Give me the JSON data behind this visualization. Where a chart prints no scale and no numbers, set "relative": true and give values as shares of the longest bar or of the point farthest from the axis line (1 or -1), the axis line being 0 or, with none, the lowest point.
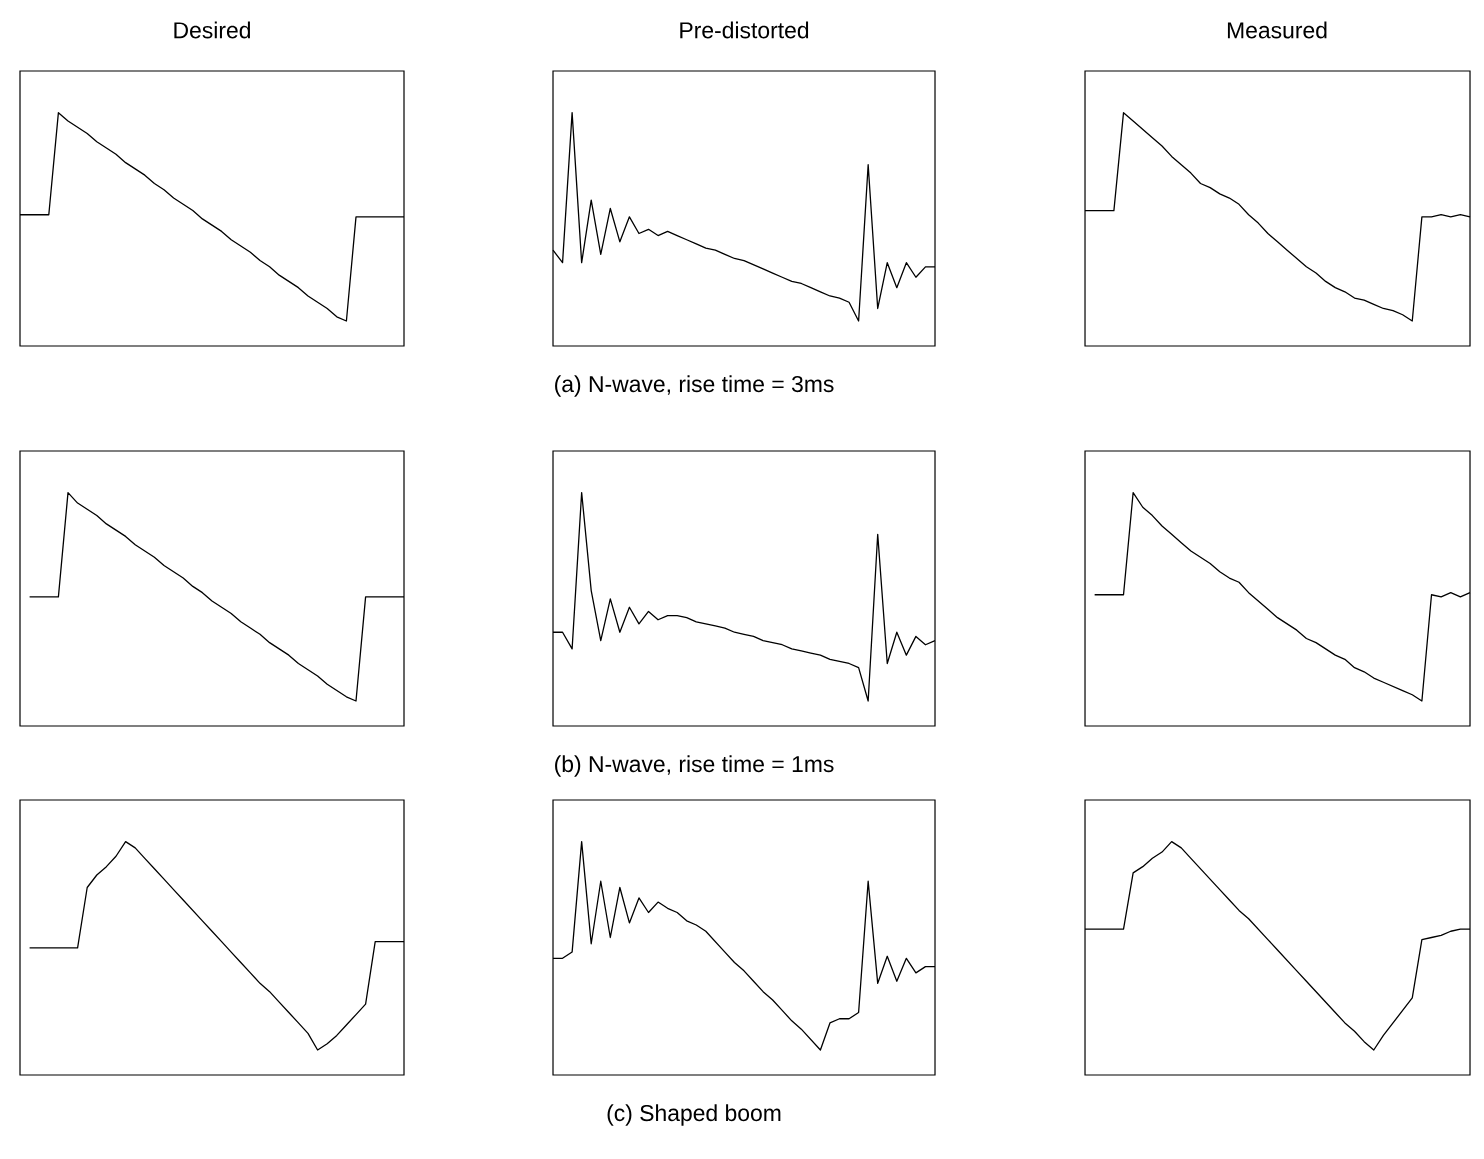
{
  "chart_data": [
    {
      "type": "line",
      "relative": true,
      "title": "Desired",
      "color": "#000000",
      "categories": [
        null,
        null,
        null,
        null,
        null,
        null,
        null,
        null,
        null,
        null,
        null,
        null,
        null,
        null,
        null,
        null,
        null,
        null,
        null,
        null,
        null,
        null,
        null,
        null,
        null,
        null,
        null,
        null,
        null,
        null,
        null,
        null,
        null,
        null,
        null,
        null,
        null,
        null,
        null,
        null,
        null
      ],
      "values": [
        0.51,
        0.51,
        0.51,
        0.51,
        1,
        0.96,
        0.93,
        0.9,
        0.86,
        0.83,
        0.8,
        0.76,
        0.73,
        0.7,
        0.66,
        0.63,
        0.59,
        0.56,
        0.53,
        0.49,
        0.46,
        0.43,
        0.39,
        0.36,
        0.33,
        0.29,
        0.26,
        0.22,
        0.19,
        0.16,
        0.12,
        0.09,
        0.06,
        0.02,
        0,
        0.5,
        0.5,
        0.5,
        0.5,
        0.5,
        0.5
      ]
    },
    {
      "type": "line",
      "relative": true,
      "title": "Pre-distorted",
      "annotations": [
        "(a)  N-wave, rise time = 3ms"
      ],
      "color": "#000000",
      "categories": [
        null,
        null,
        null,
        null,
        null,
        null,
        null,
        null,
        null,
        null,
        null,
        null,
        null,
        null,
        null,
        null,
        null,
        null,
        null,
        null,
        null,
        null,
        null,
        null,
        null,
        null,
        null,
        null,
        null,
        null,
        null,
        null,
        null,
        null,
        null,
        null,
        null,
        null,
        null,
        null,
        null
      ],
      "values": [
        0.34,
        0.28,
        1,
        0.28,
        0.58,
        0.32,
        0.54,
        0.38,
        0.5,
        0.42,
        0.44,
        0.41,
        0.43,
        0.41,
        0.39,
        0.37,
        0.35,
        0.34,
        0.32,
        0.3,
        0.29,
        0.27,
        0.25,
        0.23,
        0.21,
        0.19,
        0.18,
        0.16,
        0.14,
        0.12,
        0.11,
        0.09,
        0,
        0.75,
        0.06,
        0.28,
        0.16,
        0.28,
        0.21,
        0.26,
        0.26
      ]
    },
    {
      "type": "line",
      "relative": true,
      "title": "Measured",
      "color": "#000000",
      "categories": [
        null,
        null,
        null,
        null,
        null,
        null,
        null,
        null,
        null,
        null,
        null,
        null,
        null,
        null,
        null,
        null,
        null,
        null,
        null,
        null,
        null,
        null,
        null,
        null,
        null,
        null,
        null,
        null,
        null,
        null,
        null,
        null,
        null,
        null,
        null,
        null,
        null,
        null,
        null,
        null,
        null
      ],
      "values": [
        0.53,
        0.53,
        0.53,
        0.53,
        1,
        0.96,
        0.92,
        0.88,
        0.84,
        0.79,
        0.75,
        0.71,
        0.66,
        0.64,
        0.61,
        0.59,
        0.56,
        0.51,
        0.47,
        0.42,
        0.38,
        0.34,
        0.3,
        0.26,
        0.23,
        0.19,
        0.16,
        0.14,
        0.11,
        0.1,
        0.08,
        0.06,
        0.05,
        0.03,
        0,
        0.5,
        0.5,
        0.51,
        0.5,
        0.51,
        0.5
      ]
    },
    {
      "type": "line",
      "relative": true,
      "color": "#000000",
      "categories": [
        null,
        null,
        null,
        null,
        null,
        null,
        null,
        null,
        null,
        null,
        null,
        null,
        null,
        null,
        null,
        null,
        null,
        null,
        null,
        null,
        null,
        null,
        null,
        null,
        null,
        null,
        null,
        null,
        null,
        null,
        null,
        null,
        null,
        null,
        null,
        null,
        null,
        null,
        null,
        null,
        null
      ],
      "values": [
        null,
        0.5,
        0.5,
        0.5,
        0.5,
        1,
        0.95,
        0.92,
        0.89,
        0.85,
        0.82,
        0.79,
        0.75,
        0.72,
        0.69,
        0.65,
        0.62,
        0.59,
        0.55,
        0.52,
        0.48,
        0.45,
        0.42,
        0.38,
        0.35,
        0.32,
        0.28,
        0.25,
        0.22,
        0.18,
        0.15,
        0.12,
        0.08,
        0.05,
        0.02,
        0,
        0.5,
        0.5,
        0.5,
        0.5,
        0.5
      ]
    },
    {
      "type": "line",
      "relative": true,
      "annotations": [
        "(b)  N-wave, rise time = 1ms"
      ],
      "color": "#000000",
      "categories": [
        null,
        null,
        null,
        null,
        null,
        null,
        null,
        null,
        null,
        null,
        null,
        null,
        null,
        null,
        null,
        null,
        null,
        null,
        null,
        null,
        null,
        null,
        null,
        null,
        null,
        null,
        null,
        null,
        null,
        null,
        null,
        null,
        null,
        null,
        null,
        null,
        null,
        null,
        null,
        null,
        null
      ],
      "values": [
        0.33,
        0.33,
        0.25,
        1,
        0.53,
        0.29,
        0.49,
        0.33,
        0.45,
        0.37,
        0.43,
        0.39,
        0.41,
        0.41,
        0.4,
        0.38,
        0.37,
        0.36,
        0.35,
        0.33,
        0.32,
        0.31,
        0.29,
        0.28,
        0.27,
        0.25,
        0.24,
        0.23,
        0.22,
        0.2,
        0.19,
        0.18,
        0.16,
        0,
        0.8,
        0.18,
        0.33,
        0.22,
        0.31,
        0.27,
        0.29
      ]
    },
    {
      "type": "line",
      "relative": true,
      "color": "#000000",
      "categories": [
        null,
        null,
        null,
        null,
        null,
        null,
        null,
        null,
        null,
        null,
        null,
        null,
        null,
        null,
        null,
        null,
        null,
        null,
        null,
        null,
        null,
        null,
        null,
        null,
        null,
        null,
        null,
        null,
        null,
        null,
        null,
        null,
        null,
        null,
        null,
        null,
        null,
        null,
        null,
        null,
        null
      ],
      "values": [
        null,
        0.51,
        0.51,
        0.51,
        0.51,
        1,
        0.93,
        0.89,
        0.84,
        0.8,
        0.76,
        0.72,
        0.69,
        0.66,
        0.62,
        0.59,
        0.57,
        0.52,
        0.48,
        0.44,
        0.4,
        0.37,
        0.34,
        0.3,
        0.28,
        0.25,
        0.22,
        0.2,
        0.16,
        0.14,
        0.11,
        0.09,
        0.07,
        0.05,
        0.03,
        0,
        0.51,
        0.5,
        0.52,
        0.5,
        0.52
      ]
    },
    {
      "type": "line",
      "relative": true,
      "color": "#000000",
      "categories": [
        null,
        null,
        null,
        null,
        null,
        null,
        null,
        null,
        null,
        null,
        null,
        null,
        null,
        null,
        null,
        null,
        null,
        null,
        null,
        null,
        null,
        null,
        null,
        null,
        null,
        null,
        null,
        null,
        null,
        null,
        null,
        null,
        null,
        null,
        null,
        null,
        null,
        null,
        null,
        null,
        null
      ],
      "values": [
        null,
        0.49,
        0.49,
        0.49,
        0.49,
        0.49,
        0.49,
        0.78,
        0.84,
        0.88,
        0.93,
        1,
        0.97,
        0.92,
        0.87,
        0.82,
        0.77,
        0.72,
        0.67,
        0.62,
        0.57,
        0.52,
        0.47,
        0.42,
        0.37,
        0.32,
        0.28,
        0.23,
        0.18,
        0.13,
        0.08,
        0,
        0.03,
        0.07,
        0.12,
        0.17,
        0.22,
        0.52,
        0.52,
        0.52,
        0.52
      ]
    },
    {
      "type": "line",
      "relative": true,
      "annotations": [
        "(c)  Shaped boom"
      ],
      "color": "#000000",
      "categories": [
        null,
        null,
        null,
        null,
        null,
        null,
        null,
        null,
        null,
        null,
        null,
        null,
        null,
        null,
        null,
        null,
        null,
        null,
        null,
        null,
        null,
        null,
        null,
        null,
        null,
        null,
        null,
        null,
        null,
        null,
        null,
        null,
        null,
        null,
        null,
        null,
        null,
        null,
        null,
        null,
        null
      ],
      "values": [
        0.44,
        0.44,
        0.47,
        1,
        0.51,
        0.81,
        0.54,
        0.78,
        0.61,
        0.73,
        0.66,
        0.71,
        0.68,
        0.66,
        0.62,
        0.6,
        0.57,
        0.52,
        0.47,
        0.42,
        0.38,
        0.33,
        0.28,
        0.24,
        0.19,
        0.14,
        0.1,
        0.05,
        0,
        0.13,
        0.15,
        0.15,
        0.18,
        0.81,
        0.32,
        0.45,
        0.33,
        0.44,
        0.37,
        0.4,
        0.4
      ]
    },
    {
      "type": "line",
      "relative": true,
      "color": "#000000",
      "categories": [
        null,
        null,
        null,
        null,
        null,
        null,
        null,
        null,
        null,
        null,
        null,
        null,
        null,
        null,
        null,
        null,
        null,
        null,
        null,
        null,
        null,
        null,
        null,
        null,
        null,
        null,
        null,
        null,
        null,
        null,
        null,
        null,
        null,
        null,
        null,
        null,
        null,
        null,
        null,
        null,
        null
      ],
      "values": [
        0.58,
        0.58,
        0.58,
        0.58,
        0.58,
        0.85,
        0.88,
        0.92,
        0.95,
        1,
        0.97,
        0.92,
        0.87,
        0.82,
        0.77,
        0.72,
        0.67,
        0.63,
        0.58,
        0.53,
        0.48,
        0.43,
        0.38,
        0.33,
        0.28,
        0.23,
        0.18,
        0.13,
        0.09,
        0.04,
        0,
        0.07,
        0.13,
        0.19,
        0.25,
        0.53,
        0.54,
        0.55,
        0.57,
        0.58,
        0.58
      ]
    }
  ]
}
